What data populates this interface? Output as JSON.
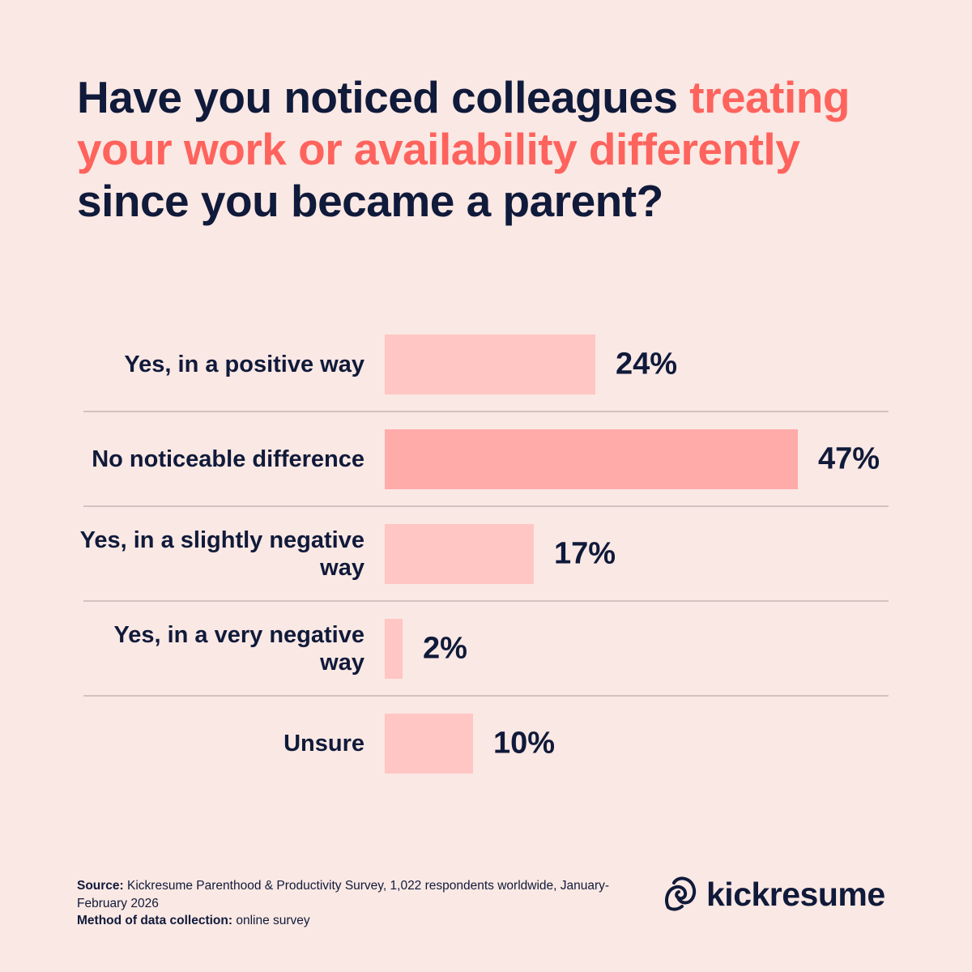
{
  "title": {
    "part1": "Have you noticed colleagues ",
    "highlight": "treating your work or availability differently",
    "part2": " since you became a parent?"
  },
  "chart_data": {
    "type": "bar",
    "orientation": "horizontal",
    "categories": [
      "Yes, in a positive way",
      "No noticeable difference",
      "Yes, in a slightly negative way",
      "Yes, in a very negative way",
      "Unsure"
    ],
    "values": [
      24,
      47,
      17,
      2,
      10
    ],
    "value_labels": [
      "24%",
      "47%",
      "17%",
      "2%",
      "10%"
    ],
    "unit": "%",
    "xlim": [
      0,
      47
    ],
    "grid": false,
    "colors": {
      "bar": "#ffc6c3",
      "bar_max": "#ffabaa",
      "highlight_text": "#fe635d",
      "text": "#101a3a",
      "background": "#fae8e4"
    }
  },
  "footer": {
    "source_label": "Source:",
    "source_text": " Kickresume Parenthood & Productivity Survey, 1,022 respondents worldwide, January-February 2026",
    "method_label": "Method of data collection:",
    "method_text": " online survey"
  },
  "logo": {
    "text": "kickresume",
    "icon": "kickresume-logo-icon"
  }
}
